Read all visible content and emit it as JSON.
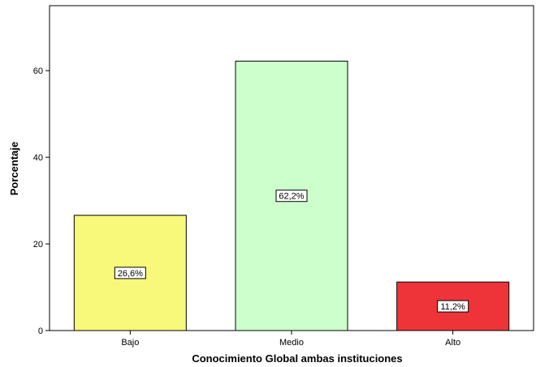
{
  "chart_data": {
    "type": "bar",
    "categories": [
      "Bajo",
      "Medio",
      "Alto"
    ],
    "values": [
      26.6,
      62.2,
      11.2
    ],
    "data_labels": [
      "26,6%",
      "62,2%",
      "11,2%"
    ],
    "colors": [
      "#f8f87a",
      "#ccffcc",
      "#ee3438"
    ],
    "title": "",
    "xlabel": "Conocimiento Global ambas instituciones",
    "ylabel": "Porcentaje",
    "ylim": [
      0,
      75
    ],
    "yticks": [
      0,
      20,
      40,
      60
    ],
    "grid": false,
    "legend": "none"
  }
}
